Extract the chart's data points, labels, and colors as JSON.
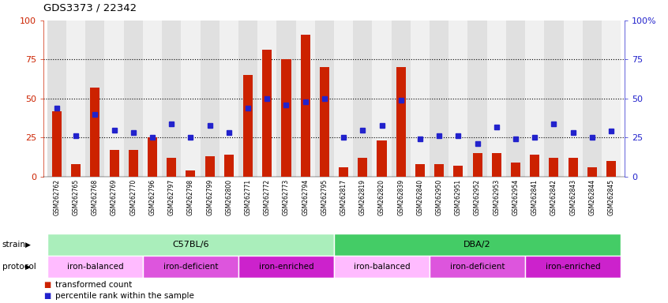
{
  "title": "GDS3373 / 22342",
  "samples": [
    "GSM262762",
    "GSM262765",
    "GSM262768",
    "GSM262769",
    "GSM262770",
    "GSM262796",
    "GSM262797",
    "GSM262798",
    "GSM262799",
    "GSM262800",
    "GSM262771",
    "GSM262772",
    "GSM262773",
    "GSM262794",
    "GSM262795",
    "GSM262817",
    "GSM262819",
    "GSM262820",
    "GSM262839",
    "GSM262840",
    "GSM262950",
    "GSM262951",
    "GSM262952",
    "GSM262953",
    "GSM262954",
    "GSM262841",
    "GSM262842",
    "GSM262843",
    "GSM262844",
    "GSM262845"
  ],
  "bar_values": [
    42,
    8,
    57,
    17,
    17,
    25,
    12,
    4,
    13,
    14,
    65,
    81,
    75,
    91,
    70,
    6,
    12,
    23,
    70,
    8,
    8,
    7,
    15,
    15,
    9,
    14,
    12,
    12,
    6,
    10
  ],
  "dot_values": [
    44,
    26,
    40,
    30,
    28,
    25,
    34,
    25,
    33,
    28,
    44,
    50,
    46,
    48,
    50,
    25,
    30,
    33,
    49,
    24,
    26,
    26,
    21,
    32,
    24,
    25,
    34,
    28,
    25,
    29
  ],
  "bar_color": "#cc2200",
  "dot_color": "#2222cc",
  "bg_even": "#e0e0e0",
  "bg_odd": "#f0f0f0",
  "ylim": [
    0,
    100
  ],
  "yticks": [
    0,
    25,
    50,
    75,
    100
  ],
  "hlines": [
    25,
    50,
    75
  ],
  "strain_groups": [
    {
      "label": "C57BL/6",
      "start": 0,
      "end": 14,
      "color": "#aaeebb"
    },
    {
      "label": "DBA/2",
      "start": 15,
      "end": 29,
      "color": "#44cc66"
    }
  ],
  "protocol_groups": [
    {
      "label": "iron-balanced",
      "start": 0,
      "end": 4,
      "color": "#ffbbff"
    },
    {
      "label": "iron-deficient",
      "start": 5,
      "end": 9,
      "color": "#dd55dd"
    },
    {
      "label": "iron-enriched",
      "start": 10,
      "end": 14,
      "color": "#cc22cc"
    },
    {
      "label": "iron-balanced",
      "start": 15,
      "end": 19,
      "color": "#ffbbff"
    },
    {
      "label": "iron-deficient",
      "start": 20,
      "end": 24,
      "color": "#dd55dd"
    },
    {
      "label": "iron-enriched",
      "start": 25,
      "end": 29,
      "color": "#cc22cc"
    }
  ],
  "legend_bar_label": "transformed count",
  "legend_dot_label": "percentile rank within the sample"
}
